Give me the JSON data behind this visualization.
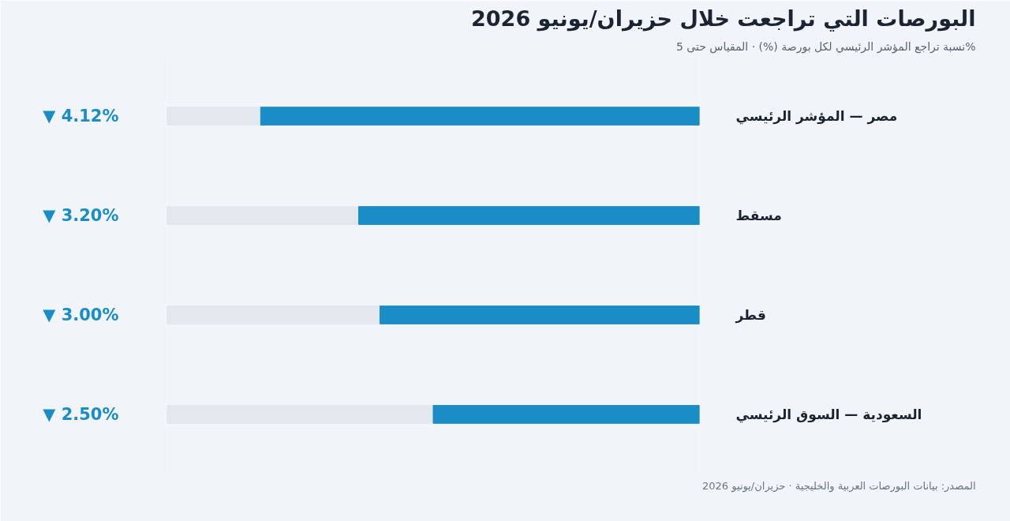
{
  "chart_data": {
    "type": "bar",
    "orientation": "horizontal",
    "title": "البورصات التي تراجعت خلال حزيران/يونيو 2026",
    "subtitle": "نسبة تراجع المؤشر الرئيسي لكل بورصة (%) · المقياس حتى 5%",
    "categories": [
      "مصر — المؤشر الرئيسي",
      "مسقط",
      "قطر",
      "السعودية — السوق الرئيسي"
    ],
    "values": [
      4.12,
      3.2,
      3.0,
      2.5
    ],
    "value_labels": [
      "▼ 4.12%",
      "▼ 3.20%",
      "▼ 3.00%",
      "▼ 2.50%"
    ],
    "color": "#1a8cc6",
    "xlim": [
      5,
      0
    ],
    "tick_labels": false,
    "grid": false,
    "annotations": [
      "المصدر: بيانات البورصات العربية والخليجية · حزيران/يونيو 2026"
    ]
  }
}
